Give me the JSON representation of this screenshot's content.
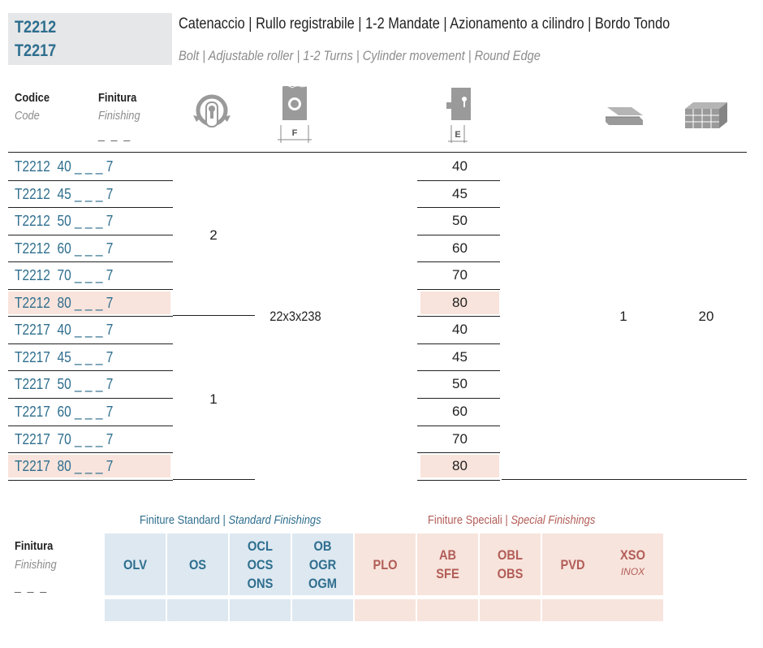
{
  "header": {
    "codes": [
      "T2212",
      "T2217"
    ],
    "title_it": "Catenaccio | Rullo registrabile | 1-2 Mandate | Azionamento a cilindro | Bordo Tondo",
    "title_en": "Bolt | Adjustable roller | 1-2 Turns | Cylinder movement | Round Edge"
  },
  "columns": {
    "code_it": "Codice",
    "code_en": "Code",
    "finish_it": "Finitura",
    "finish_en": "Finishing",
    "finish_dash": "_ _ _",
    "faceplate_label": "F",
    "backset_label": "E",
    "icons": [
      "cylinder-turns-icon",
      "faceplate-icon",
      "backset-icon",
      "box-quantity-icon",
      "carton-pack-icon"
    ]
  },
  "rows": [
    {
      "code": "T2212  40 _ _ _ 7",
      "backset": "40",
      "highlight": false
    },
    {
      "code": "T2212  45 _ _ _ 7",
      "backset": "45",
      "highlight": false
    },
    {
      "code": "T2212  50 _ _ _ 7",
      "backset": "50",
      "highlight": false
    },
    {
      "code": "T2212  60 _ _ _ 7",
      "backset": "60",
      "highlight": false
    },
    {
      "code": "T2212  70 _ _ _ 7",
      "backset": "70",
      "highlight": false
    },
    {
      "code": "T2212  80 _ _ _ 7",
      "backset": "80",
      "highlight": true
    },
    {
      "code": "T2217  40 _ _ _ 7",
      "backset": "40",
      "highlight": false
    },
    {
      "code": "T2217  45 _ _ _ 7",
      "backset": "45",
      "highlight": false
    },
    {
      "code": "T2217  50 _ _ _ 7",
      "backset": "50",
      "highlight": false
    },
    {
      "code": "T2217  60 _ _ _ 7",
      "backset": "60",
      "highlight": false
    },
    {
      "code": "T2217  70 _ _ _ 7",
      "backset": "70",
      "highlight": false
    },
    {
      "code": "T2217  80 _ _ _ 7",
      "backset": "80",
      "highlight": true
    }
  ],
  "merged": {
    "turns_t2212": "2",
    "turns_t2217": "1",
    "faceplate": "22x3x238",
    "box_qty": "1",
    "pack_qty": "20"
  },
  "finishes": {
    "label_it": "Finitura",
    "label_en": "Finishing",
    "label_dash": "_ _ _",
    "standard_title_it": "Finiture Standard",
    "standard_title_en": "Standard Finishings",
    "special_title_it": "Finiture Speciali",
    "special_title_en": "Special Finishings",
    "standard": [
      {
        "lines": [
          "OLV"
        ]
      },
      {
        "lines": [
          "OS"
        ]
      },
      {
        "lines": [
          "OCL",
          "OCS",
          "ONS"
        ]
      },
      {
        "lines": [
          "OB",
          "OGR",
          "OGM"
        ]
      }
    ],
    "special": [
      {
        "lines": [
          "PLO"
        ]
      },
      {
        "lines": [
          "AB",
          "SFE"
        ]
      },
      {
        "lines": [
          "OBL",
          "OBS"
        ]
      },
      {
        "lines": [
          "PVD"
        ]
      },
      {
        "lines": [
          "XSO"
        ],
        "sub": "INOX"
      }
    ],
    "colors": {
      "standard_bg": "#dde8f1",
      "special_bg": "#f7e4dc",
      "standard_text": "#2e6e8e",
      "special_text": "#b25d57",
      "highlight_row": "#f8e4dc"
    }
  }
}
